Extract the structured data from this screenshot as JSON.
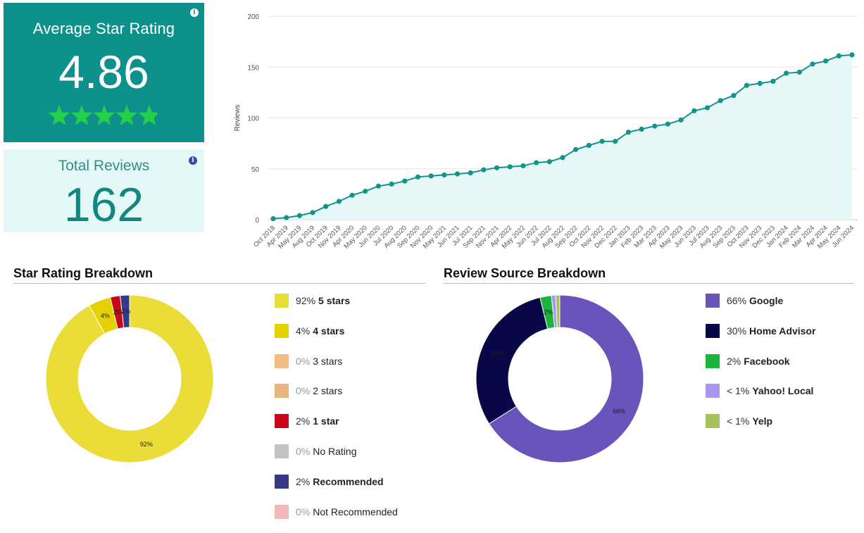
{
  "avg_card": {
    "title": "Average Star Rating",
    "value": "4.86",
    "rating": 4.86,
    "info_icon": "i",
    "accent": "#0e918c",
    "star_color": "#22d04a"
  },
  "total_card": {
    "title": "Total Reviews",
    "value": "162",
    "info_icon": "i"
  },
  "chart_data": [
    {
      "type": "area",
      "ylabel": "Reviews",
      "ylim": [
        0,
        200
      ],
      "yticks": [
        0,
        50,
        100,
        150,
        200
      ],
      "grid": true,
      "color": "#12938b",
      "fill": "#e5f8f7",
      "x": [
        "Oct 2018",
        "Apr 2019",
        "May 2019",
        "Aug 2019",
        "Oct 2019",
        "Nov 2019",
        "Apr 2020",
        "May 2020",
        "Jun 2020",
        "Jul 2020",
        "Aug 2020",
        "Sep 2020",
        "Nov 2020",
        "May 2021",
        "Jun 2021",
        "Jul 2021",
        "Sep 2021",
        "Nov 2021",
        "Apr 2022",
        "May 2022",
        "Jun 2022",
        "Jul 2022",
        "Aug 2022",
        "Sep 2022",
        "Oct 2022",
        "Nov 2022",
        "Dec 2022",
        "Jan 2023",
        "Feb 2023",
        "Mar 2023",
        "Apr 2023",
        "May 2023",
        "Jun 2023",
        "Jul 2023",
        "Aug 2023",
        "Sep 2023",
        "Oct 2023",
        "Nov 2023",
        "Dec 2023",
        "Jan 2024",
        "Feb 2024",
        "Mar 2024",
        "Apr 2024",
        "May 2024",
        "Jun 2024"
      ],
      "y": [
        1,
        2,
        4,
        7,
        13,
        18,
        24,
        28,
        33,
        35,
        38,
        42,
        43,
        44,
        45,
        46,
        49,
        51,
        52,
        53,
        56,
        57,
        61,
        69,
        73,
        77,
        77,
        86,
        89,
        92,
        94,
        98,
        107,
        110,
        117,
        122,
        132,
        134,
        136,
        144,
        145,
        153,
        156,
        161,
        162
      ]
    },
    {
      "type": "pie",
      "title": "Star Rating Breakdown",
      "slices": [
        {
          "pct_label": "92%",
          "label": "5 stars",
          "value": 92.0,
          "color": "#ecdc37",
          "chart_label": "92%",
          "dim": false
        },
        {
          "pct_label": "4%",
          "label": "4 stars",
          "value": 4.3,
          "color": "#e5d000",
          "chart_label": "4%",
          "dim": false
        },
        {
          "pct_label": "0%",
          "label": "3 stars",
          "value": 0,
          "color": "#f2bd82",
          "chart_label": "",
          "dim": true
        },
        {
          "pct_label": "0%",
          "label": "2 stars",
          "value": 0,
          "color": "#e8b47e",
          "chart_label": "",
          "dim": true
        },
        {
          "pct_label": "2%",
          "label": "1 star",
          "value": 1.9,
          "color": "#c8071a",
          "chart_label": "2%",
          "dim": false
        },
        {
          "pct_label": "0%",
          "label": "No Rating",
          "value": 0,
          "color": "#c1c1c1",
          "chart_label": "",
          "dim": true
        },
        {
          "pct_label": "2%",
          "label": "Recommended",
          "value": 1.8,
          "color": "#363a86",
          "chart_label": "2%",
          "dim": false
        },
        {
          "pct_label": "0%",
          "label": "Not Recommended",
          "value": 0,
          "color": "#f5b6b6",
          "chart_label": "",
          "dim": true
        }
      ]
    },
    {
      "type": "pie",
      "title": "Review Source Breakdown",
      "slices": [
        {
          "pct_label": "66%",
          "label": "Google",
          "value": 66.0,
          "color": "#6a54bb",
          "chart_label": "66%",
          "dim": false
        },
        {
          "pct_label": "30%",
          "label": "Home Advisor",
          "value": 30.2,
          "color": "#080846",
          "chart_label": "30%",
          "dim": false
        },
        {
          "pct_label": "2%",
          "label": "Facebook",
          "value": 2.2,
          "color": "#19b53c",
          "chart_label": "2%",
          "dim": false
        },
        {
          "pct_label": "< 1%",
          "label": "Yahoo! Local",
          "value": 0.8,
          "color": "#a896f1",
          "chart_label": "",
          "dim": false
        },
        {
          "pct_label": "< 1%",
          "label": "Yelp",
          "value": 0.8,
          "color": "#a6c35b",
          "chart_label": "",
          "dim": false
        }
      ]
    }
  ]
}
